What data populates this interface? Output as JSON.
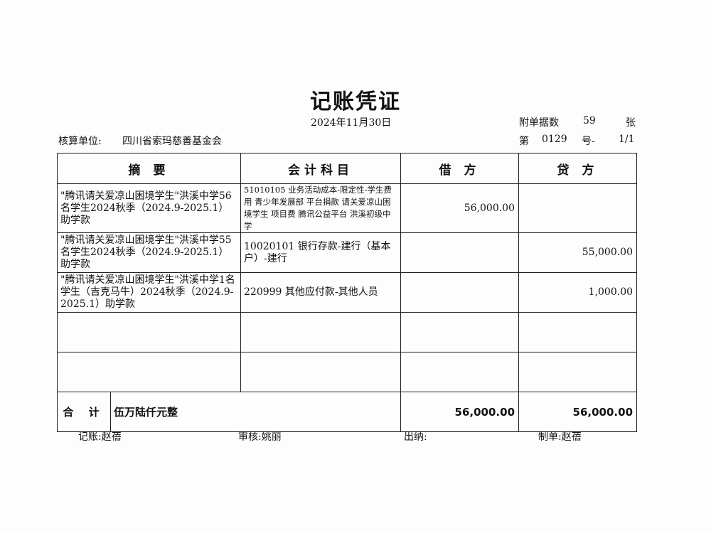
{
  "title": "记账凭证",
  "date": "2024年11月30日",
  "attachments": {
    "label": "附单据数",
    "count": "59",
    "unit": "张"
  },
  "voucher_no": {
    "prefix": "第",
    "number": "0129",
    "suffix": "号-",
    "page": "1/1"
  },
  "unit": {
    "label": "核算单位:",
    "name": "四川省索玛慈善基金会"
  },
  "headers": [
    "摘 要",
    "会计科目",
    "借 方",
    "贷 方"
  ],
  "rows": [
    {
      "summary": "\"腾讯请关爱凉山困境学生\"洪溪中学56名学生2024秋季（2024.9-2025.1）助学款",
      "account": "51010105 业务活动成本-限定性-学生费用 青少年发展部 平台捐款 请关爱凉山困境学生 项目费 腾讯公益平台 洪溪初级中学",
      "debit": "56,000.00",
      "credit": ""
    },
    {
      "summary": "\"腾讯请关爱凉山困境学生\"洪溪中学55名学生2024秋季（2024.9-2025.1）助学款",
      "account": "10020101 银行存款-建行（基本户）-建行",
      "debit": "",
      "credit": "55,000.00"
    },
    {
      "summary": "\"腾讯请关爱凉山困境学生\"洪溪中学1名学生（吉克马牛）2024秋季（2024.9-2025.1）助学款",
      "account": "220999 其他应付款-其他人员",
      "debit": "",
      "credit": "1,000.00"
    },
    {
      "summary": "",
      "account": "",
      "debit": "",
      "credit": ""
    },
    {
      "summary": "",
      "account": "",
      "debit": "",
      "credit": ""
    }
  ],
  "total": {
    "label": "合 计",
    "amount_words": "伍万陆仟元整",
    "debit": "56,000.00",
    "credit": "56,000.00"
  },
  "signatures": [
    {
      "label": "记账:",
      "name": "赵蓓"
    },
    {
      "label": "审核:",
      "name": "姚丽"
    },
    {
      "label": "出纳:",
      "name": ""
    },
    {
      "label": "制单:",
      "name": "赵蓓"
    }
  ]
}
